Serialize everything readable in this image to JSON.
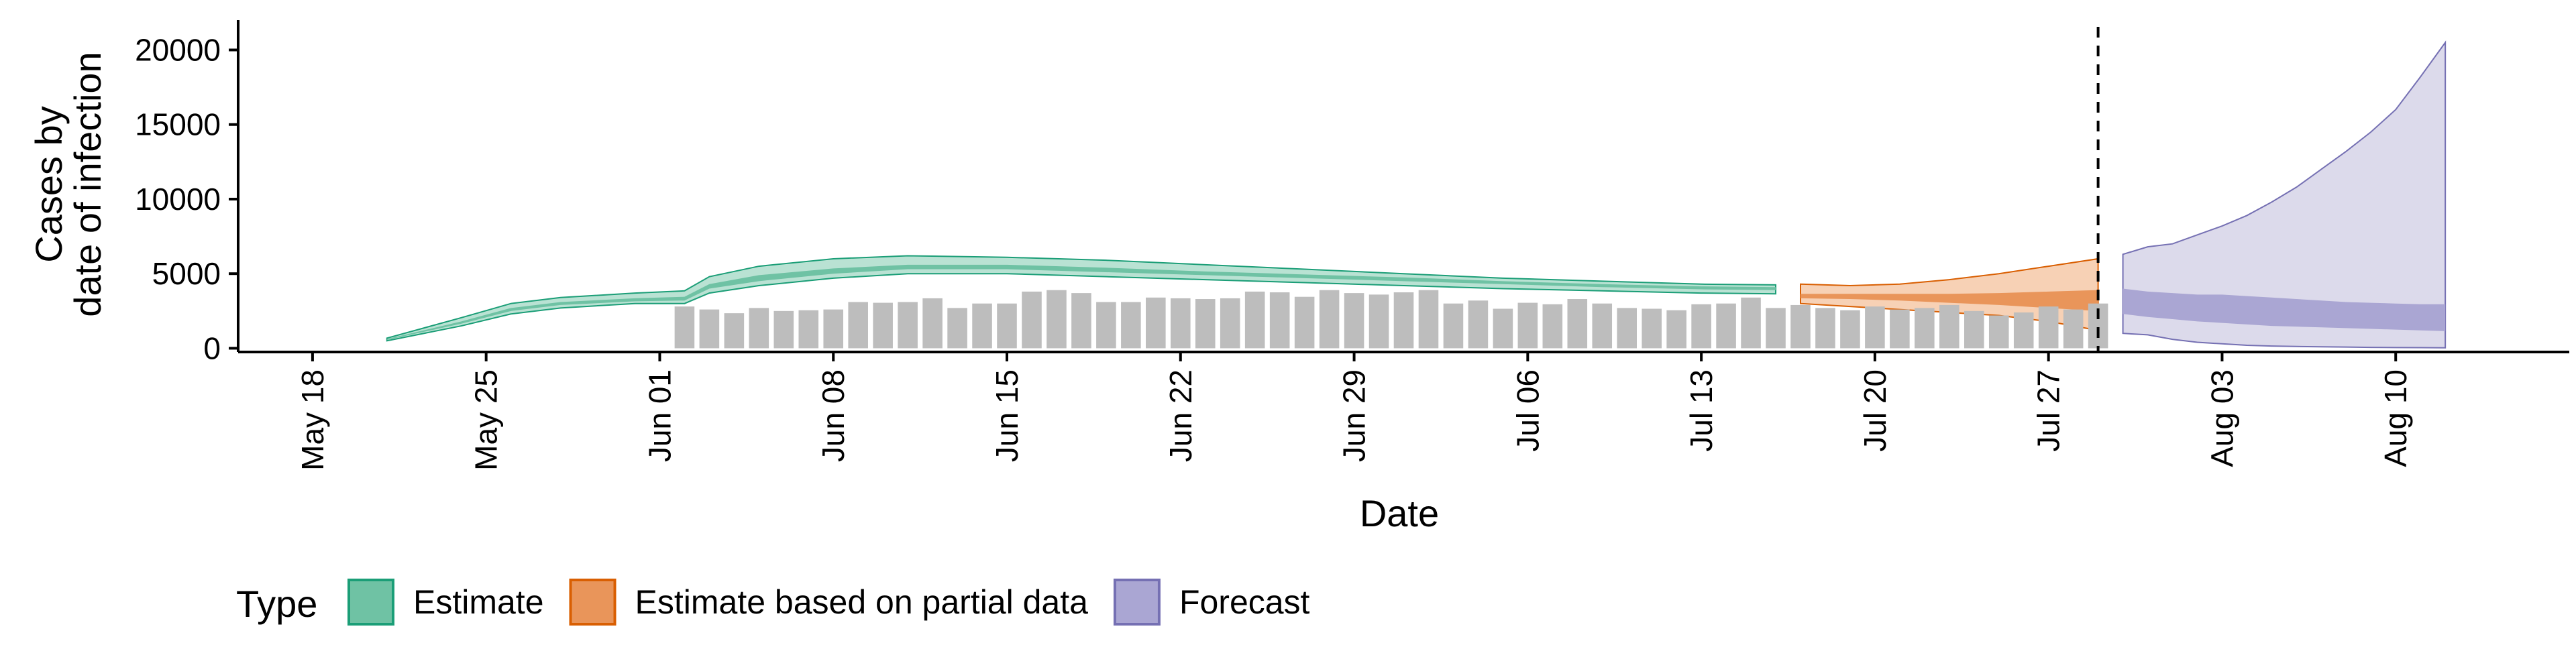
{
  "chart_data": {
    "type": "bar",
    "title": "",
    "xlabel": "Date",
    "ylabel_lines": [
      "Cases by",
      "date of infection"
    ],
    "ylim": [
      -250,
      22000
    ],
    "yticks": [
      0,
      5000,
      10000,
      15000,
      20000
    ],
    "x_start_date": "2020-05-15",
    "x_end_date": "2020-08-17",
    "xticks": [
      {
        "date": "2020-05-18",
        "label": "May 18"
      },
      {
        "date": "2020-05-25",
        "label": "May 25"
      },
      {
        "date": "2020-06-01",
        "label": "Jun 01"
      },
      {
        "date": "2020-06-08",
        "label": "Jun 08"
      },
      {
        "date": "2020-06-15",
        "label": "Jun 15"
      },
      {
        "date": "2020-06-22",
        "label": "Jun 22"
      },
      {
        "date": "2020-06-29",
        "label": "Jun 29"
      },
      {
        "date": "2020-07-06",
        "label": "Jul 06"
      },
      {
        "date": "2020-07-13",
        "label": "Jul 13"
      },
      {
        "date": "2020-07-20",
        "label": "Jul 20"
      },
      {
        "date": "2020-07-27",
        "label": "Jul 27"
      },
      {
        "date": "2020-08-03",
        "label": "Aug 03"
      },
      {
        "date": "2020-08-10",
        "label": "Aug 10"
      }
    ],
    "forecast_date": "2020-07-29",
    "reported_cases": {
      "start_date": "2020-06-02",
      "color": "#bdbdbd",
      "values": [
        2800,
        2600,
        2350,
        2700,
        2500,
        2550,
        2600,
        3100,
        3050,
        3100,
        3350,
        2700,
        3000,
        3000,
        3800,
        3900,
        3700,
        3100,
        3100,
        3400,
        3350,
        3300,
        3350,
        3800,
        3750,
        3450,
        3900,
        3700,
        3600,
        3750,
        3900,
        3000,
        3200,
        2650,
        3050,
        2950,
        3300,
        3000,
        2700,
        2650,
        2550,
        2950,
        3000,
        3400,
        2700,
        2900,
        2700,
        2550,
        2800,
        2600,
        2700,
        2900,
        2500,
        2200,
        2400,
        2800,
        2600,
        3000
      ]
    },
    "series": [
      {
        "name": "Estimate",
        "color": "#1b9e77",
        "outer_fill": "#b9e2d3",
        "inner_fill": "#6fc2a4",
        "x": [
          "2020-05-21",
          "2020-05-24",
          "2020-05-26",
          "2020-05-28",
          "2020-05-31",
          "2020-06-02",
          "2020-06-03",
          "2020-06-05",
          "2020-06-08",
          "2020-06-11",
          "2020-06-15",
          "2020-06-19",
          "2020-06-23",
          "2020-06-27",
          "2020-07-01",
          "2020-07-05",
          "2020-07-09",
          "2020-07-13",
          "2020-07-16"
        ],
        "lower90": [
          500,
          1500,
          2300,
          2700,
          3000,
          3000,
          3700,
          4200,
          4700,
          5000,
          5000,
          4800,
          4600,
          4400,
          4200,
          4000,
          3850,
          3700,
          3650
        ],
        "lower50": [
          560,
          1650,
          2500,
          2900,
          3150,
          3200,
          4000,
          4500,
          5000,
          5300,
          5300,
          5100,
          4900,
          4700,
          4500,
          4300,
          4100,
          3950,
          3900
        ],
        "upper50": [
          620,
          1800,
          2700,
          3100,
          3350,
          3450,
          4300,
          4900,
          5350,
          5600,
          5600,
          5400,
          5150,
          4950,
          4750,
          4500,
          4300,
          4150,
          4100
        ],
        "upper90": [
          680,
          2050,
          3000,
          3400,
          3700,
          3850,
          4800,
          5500,
          6000,
          6200,
          6100,
          5900,
          5600,
          5300,
          5000,
          4700,
          4500,
          4300,
          4250
        ]
      },
      {
        "name": "Estimate based on partial data",
        "color": "#d95f02",
        "outer_fill": "#f7d1b5",
        "inner_fill": "#e9955a",
        "x": [
          "2020-07-17",
          "2020-07-19",
          "2020-07-21",
          "2020-07-23",
          "2020-07-25",
          "2020-07-27",
          "2020-07-29"
        ],
        "lower90": [
          3000,
          2800,
          2600,
          2400,
          2200,
          1800,
          1200
        ],
        "lower50": [
          3350,
          3300,
          3200,
          3050,
          2900,
          2700,
          2500
        ],
        "upper50": [
          3650,
          3650,
          3650,
          3650,
          3700,
          3800,
          3900
        ],
        "upper90": [
          4300,
          4200,
          4300,
          4600,
          5000,
          5500,
          6000
        ]
      },
      {
        "name": "Forecast",
        "color": "#7570b3",
        "outer_fill": "#dcdaeb",
        "inner_fill": "#aaa6d3",
        "x": [
          "2020-07-30",
          "2020-07-31",
          "2020-08-01",
          "2020-08-02",
          "2020-08-03",
          "2020-08-04",
          "2020-08-05",
          "2020-08-06",
          "2020-08-07",
          "2020-08-08",
          "2020-08-09",
          "2020-08-10",
          "2020-08-11",
          "2020-08-12"
        ],
        "lower90": [
          1000,
          900,
          600,
          400,
          300,
          200,
          150,
          120,
          100,
          80,
          60,
          50,
          40,
          30
        ],
        "lower50": [
          2300,
          2100,
          1950,
          1800,
          1700,
          1600,
          1500,
          1450,
          1400,
          1350,
          1300,
          1250,
          1200,
          1150
        ],
        "upper50": [
          4000,
          3800,
          3700,
          3600,
          3600,
          3500,
          3400,
          3300,
          3200,
          3100,
          3050,
          3000,
          2950,
          2950
        ],
        "upper90": [
          6300,
          6800,
          7000,
          7600,
          8200,
          8900,
          9800,
          10800,
          12000,
          13200,
          14500,
          16000,
          18200,
          20500
        ]
      }
    ],
    "legend": {
      "title": "Type",
      "position": "bottom",
      "items": [
        "Estimate",
        "Estimate based on partial data",
        "Forecast"
      ]
    }
  }
}
